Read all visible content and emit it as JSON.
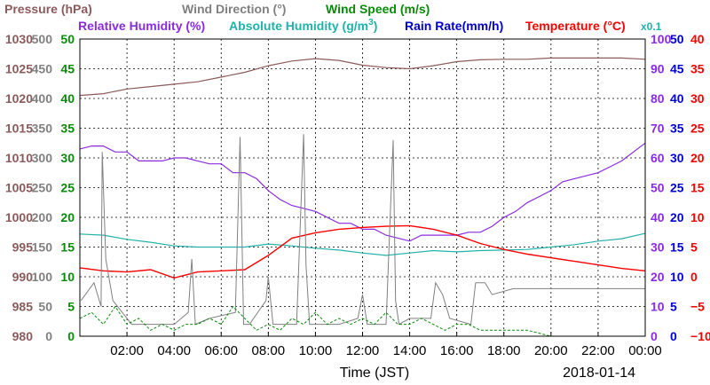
{
  "legend": {
    "pressure": "Pressure (hPa)",
    "wind_dir": "Wind Direction (°)",
    "wind_speed": "Wind Speed (m/s)",
    "rel_hum": "Relative Humidity (%)",
    "abs_hum_prefix": "Absolute Humidity (g/m",
    "abs_hum_sup": "3",
    "abs_hum_suffix": ")",
    "rain": "Rain Rate(mm/h)",
    "temp": "Temperature (°C)",
    "rain_scale": "x0.1"
  },
  "xlabel": "Time (JST)",
  "date": "2018-01-14",
  "colors": {
    "pressure": "#8c5a5a",
    "wind_dir": "#808080",
    "wind_speed": "#0a8a0a",
    "rel_hum": "#8a2be2",
    "abs_hum": "#20b2aa",
    "rain": "#0000d0",
    "temp": "#ff0000"
  },
  "chart_data": {
    "type": "line",
    "x_range_hours": [
      0,
      24
    ],
    "x_ticks": [
      "02:00",
      "04:00",
      "06:00",
      "08:00",
      "10:00",
      "12:00",
      "14:00",
      "16:00",
      "18:00",
      "20:00",
      "22:00",
      "00:00"
    ],
    "axes": {
      "pressure": {
        "min": 980,
        "max": 1030,
        "ticks": [
          "980",
          "985",
          "990",
          "995",
          "1000",
          "1005",
          "1010",
          "1015",
          "1020",
          "1025",
          "1030"
        ]
      },
      "wind_dir": {
        "min": 0,
        "max": 500,
        "ticks": [
          "0",
          "50",
          "100",
          "150",
          "200",
          "250",
          "300",
          "350",
          "400",
          "450",
          "500"
        ]
      },
      "wind_speed": {
        "min": 0,
        "max": 50,
        "ticks": [
          "0",
          "5",
          "10",
          "15",
          "20",
          "25",
          "30",
          "35",
          "40",
          "45",
          "50"
        ]
      },
      "rel_hum": {
        "min": 0,
        "max": 100,
        "ticks": [
          "0",
          "10",
          "20",
          "30",
          "40",
          "50",
          "60",
          "70",
          "80",
          "90",
          "100"
        ]
      },
      "rain": {
        "min": 0,
        "max": 50,
        "ticks": [
          "0",
          "5",
          "10",
          "15",
          "20",
          "25",
          "30",
          "35",
          "40",
          "45",
          "50"
        ]
      },
      "temp": {
        "min": -10,
        "max": 40,
        "ticks": [
          "−10",
          "−5",
          "0",
          "5",
          "10",
          "15",
          "20",
          "25",
          "30",
          "35",
          "40"
        ]
      }
    },
    "grid": true,
    "series": [
      {
        "name": "Pressure (hPa)",
        "key": "pressure",
        "axis": "pressure",
        "x": [
          0,
          1,
          2,
          3,
          4,
          5,
          6,
          7,
          8,
          9,
          10,
          11,
          12,
          13,
          14,
          15,
          16,
          17,
          18,
          19,
          20,
          21,
          22,
          23,
          24
        ],
        "y": [
          1020.5,
          1020.8,
          1021.6,
          1022.0,
          1022.4,
          1022.8,
          1023.6,
          1024.4,
          1025.5,
          1026.3,
          1026.7,
          1026.4,
          1025.6,
          1025.2,
          1025.0,
          1025.5,
          1026.2,
          1026.5,
          1026.6,
          1026.6,
          1026.8,
          1026.8,
          1026.8,
          1026.8,
          1026.6
        ]
      },
      {
        "name": "Relative Humidity (%)",
        "key": "rel_hum",
        "axis": "rel_hum",
        "x": [
          0,
          0.5,
          1,
          1.5,
          2,
          2.5,
          3,
          3.5,
          4,
          4.5,
          5,
          5.5,
          6,
          6.5,
          7,
          7.5,
          8,
          8.5,
          9,
          9.5,
          10,
          10.5,
          11,
          11.5,
          12,
          12.5,
          13,
          13.5,
          14,
          14.5,
          15,
          15.5,
          16,
          16.5,
          17,
          17.5,
          18,
          18.5,
          19,
          19.5,
          20,
          20.5,
          21,
          21.5,
          22,
          22.5,
          23,
          23.5,
          24
        ],
        "y": [
          63,
          64,
          64,
          62,
          62,
          59,
          59,
          59,
          60,
          60,
          59,
          58,
          58,
          55,
          55,
          53,
          49,
          46,
          44,
          43,
          42,
          40,
          38,
          38,
          36,
          36,
          34,
          33,
          32,
          34,
          34,
          34,
          34,
          35,
          35,
          37,
          40,
          42,
          45,
          47,
          49,
          52,
          53,
          54,
          55,
          57,
          59,
          62,
          65
        ]
      },
      {
        "name": "Absolute Humidity (g/m3)",
        "key": "abs_hum",
        "axis": "wind_speed",
        "x": [
          0,
          1,
          2,
          3,
          4,
          5,
          6,
          7,
          8,
          9,
          10,
          11,
          12,
          13,
          14,
          15,
          16,
          17,
          18,
          19,
          20,
          21,
          22,
          23,
          24
        ],
        "y": [
          17.2,
          17.0,
          16.3,
          15.8,
          15.2,
          15.0,
          15.0,
          15.0,
          15.5,
          15.2,
          14.8,
          14.5,
          14.0,
          13.6,
          14.0,
          14.4,
          14.2,
          14.4,
          14.5,
          14.6,
          15.0,
          15.4,
          16.0,
          16.4,
          17.3
        ]
      },
      {
        "name": "Temperature (°C)",
        "key": "temp",
        "axis": "temp",
        "x": [
          0,
          1,
          2,
          3,
          4,
          5,
          6,
          7,
          8,
          9,
          10,
          11,
          12,
          13,
          14,
          15,
          16,
          17,
          18,
          19,
          20,
          21,
          22,
          23,
          24
        ],
        "y": [
          1.5,
          1.0,
          0.8,
          1.2,
          -0.2,
          0.8,
          1.0,
          1.2,
          3.6,
          6.5,
          7.4,
          8.0,
          8.3,
          8.5,
          8.6,
          8.0,
          7.0,
          5.6,
          4.6,
          3.8,
          3.2,
          2.6,
          2.0,
          1.4,
          1.0
        ]
      },
      {
        "name": "Wind Direction (°)",
        "key": "wind_dir",
        "axis": "wind_dir",
        "x": [
          0.05,
          0.6,
          0.9,
          0.95,
          1.1,
          1.4,
          1.8,
          2.2,
          3.0,
          4.0,
          4.6,
          4.75,
          4.9,
          5.5,
          6.6,
          6.8,
          6.95,
          7.2,
          7.9,
          8.0,
          8.2,
          9.2,
          9.5,
          9.6,
          9.75,
          10.0,
          11.0,
          11.8,
          12.0,
          12.2,
          13.0,
          13.3,
          13.4,
          13.55,
          14.0,
          14.9,
          15.1,
          15.4,
          15.7,
          16.6,
          16.8,
          17.2,
          17.5,
          18.4,
          19,
          20,
          21,
          22,
          23,
          24
        ],
        "y": [
          60,
          90,
          50,
          310,
          130,
          60,
          40,
          20,
          20,
          20,
          40,
          130,
          20,
          30,
          40,
          335,
          20,
          20,
          60,
          100,
          20,
          20,
          340,
          120,
          20,
          20,
          20,
          30,
          70,
          20,
          20,
          330,
          60,
          20,
          30,
          30,
          90,
          70,
          30,
          20,
          90,
          90,
          70,
          80,
          80,
          80,
          80,
          80,
          80,
          80
        ]
      },
      {
        "name": "Wind Speed (m/s)",
        "key": "wind_speed",
        "axis": "wind_speed",
        "x": [
          0,
          0.5,
          1,
          1.5,
          2,
          2.5,
          3,
          3.5,
          4,
          4.5,
          5,
          5.5,
          6,
          6.5,
          7,
          7.5,
          8,
          8.5,
          9,
          9.5,
          10,
          10.5,
          11,
          11.5,
          12,
          12.5,
          13,
          13.5,
          14,
          14.5,
          15,
          15.5,
          16,
          16.5,
          17,
          17.5,
          18,
          19,
          20,
          21,
          22,
          23,
          24
        ],
        "y": [
          3,
          4,
          2,
          5,
          2,
          3,
          1,
          2,
          1,
          2,
          2,
          3,
          2,
          5,
          3,
          1,
          2,
          1,
          3,
          2,
          4,
          2,
          3,
          2,
          3,
          2,
          4,
          2,
          2,
          3,
          2,
          1,
          2,
          2,
          1,
          1,
          1,
          1,
          0,
          0,
          0,
          0,
          0
        ]
      },
      {
        "name": "Rain Rate(mm/h)",
        "key": "rain",
        "axis": "rain",
        "x": [
          0,
          24
        ],
        "y": [
          0,
          0
        ]
      }
    ]
  }
}
